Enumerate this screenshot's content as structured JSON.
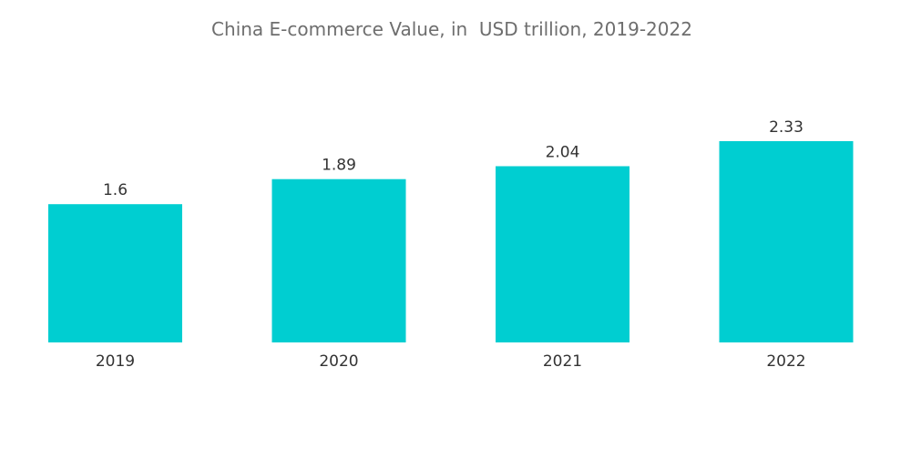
{
  "chart_data": {
    "type": "bar",
    "title": "China E-commerce Value, in  USD trillion, 2019-2022",
    "xlabel": "",
    "ylabel": "",
    "categories": [
      "2019",
      "2020",
      "2021",
      "2022"
    ],
    "values": [
      1.6,
      1.89,
      2.04,
      2.33
    ],
    "value_labels": [
      "1.6",
      "1.89",
      "2.04",
      "2.33"
    ],
    "bar_color": "#00ced1",
    "ylim": [
      0,
      2.33
    ],
    "grid": false,
    "legend": "none"
  }
}
